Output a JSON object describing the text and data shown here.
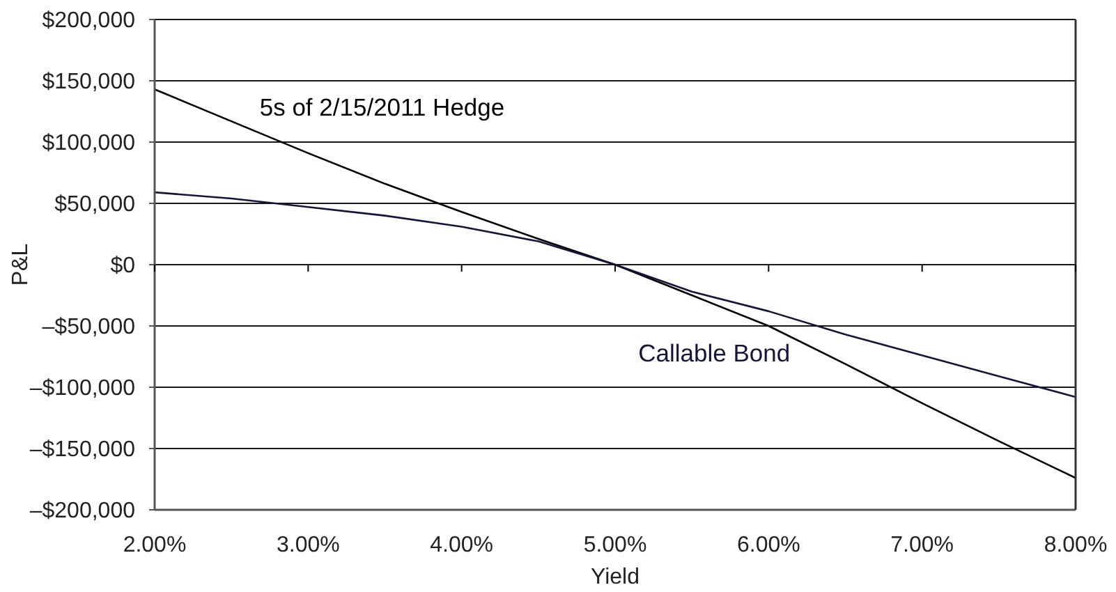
{
  "chart_data": {
    "type": "line",
    "xlabel": "Yield",
    "ylabel": "P&L",
    "x": [
      2,
      2.5,
      3,
      3.5,
      4,
      4.5,
      5,
      5.5,
      6,
      6.5,
      7,
      7.5,
      8
    ],
    "series": [
      {
        "name": "5s of 2/15/2011 Hedge",
        "color": "#000000",
        "values": [
          143000,
          117000,
          91000,
          66000,
          43000,
          21000,
          0,
          -25000,
          -50000,
          -81000,
          -113000,
          -144000,
          -174000
        ]
      },
      {
        "name": "Callable Bond",
        "color": "#14143c",
        "values": [
          59000,
          54000,
          47000,
          40000,
          31000,
          19000,
          0,
          -22000,
          -38000,
          -57000,
          -74000,
          -91000,
          -108000
        ]
      }
    ],
    "xlim": [
      2,
      8
    ],
    "xticks": [
      {
        "value": 2,
        "label": "2.00%"
      },
      {
        "value": 3,
        "label": "3.00%"
      },
      {
        "value": 4,
        "label": "4.00%"
      },
      {
        "value": 5,
        "label": "5.00%"
      },
      {
        "value": 6,
        "label": "6.00%"
      },
      {
        "value": 7,
        "label": "7.00%"
      },
      {
        "value": 8,
        "label": "8.00%"
      }
    ],
    "ylim": [
      -200000,
      200000
    ],
    "yticks": [
      {
        "value": -200000,
        "label": "–$200,000"
      },
      {
        "value": -150000,
        "label": "–$150,000"
      },
      {
        "value": -100000,
        "label": "–$100,000"
      },
      {
        "value": -50000,
        "label": "–$50,000"
      },
      {
        "value": 0,
        "label": "$0"
      },
      {
        "value": 50000,
        "label": "$50,000"
      },
      {
        "value": 100000,
        "label": "$100,000"
      },
      {
        "value": 150000,
        "label": "$150,000"
      },
      {
        "value": 200000,
        "label": "$200,000"
      }
    ],
    "grid": "y",
    "legend": false,
    "marker": "none",
    "line_style": "solid"
  }
}
